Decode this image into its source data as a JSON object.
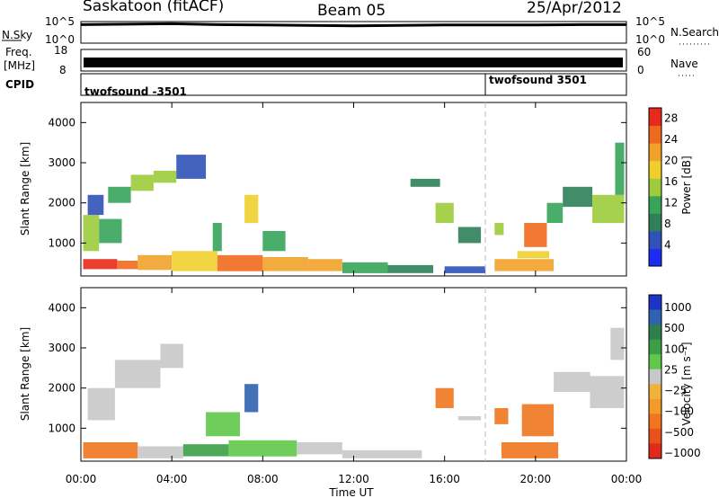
{
  "header": {
    "station": "Saskatoon (fitACF)",
    "beam": "Beam 05",
    "date": "25/Apr/2012"
  },
  "nsky": {
    "label": "N.Sky",
    "ticks": [
      "10^5",
      "10^0"
    ],
    "right_ticks": [
      "10^5",
      "10^0"
    ],
    "right_label": "N.Search"
  },
  "freq": {
    "label_line1": "Freq.",
    "label_line2": "[MHz]",
    "ticks": [
      "18",
      "8"
    ],
    "right_ticks": [
      "60",
      "0"
    ],
    "right_label": "Nave"
  },
  "cpid": {
    "label": "CPID",
    "segments": [
      "twofsound -3501",
      "twofsound 3501"
    ],
    "change_time_h": 18.0
  },
  "colors": {
    "power": [
      "#1c2cf0",
      "#2f52b8",
      "#2f7f5a",
      "#37a45a",
      "#9ccc3c",
      "#f0cf2c",
      "#f0a22a",
      "#ef6a1e",
      "#e82a1a"
    ],
    "velocity": [
      "#1e34c8",
      "#2f62b0",
      "#2e7f4c",
      "#3a9f45",
      "#60c84a",
      "#c8c8c8",
      "#f2b23a",
      "#f29a2a",
      "#f0751e",
      "#e8521a",
      "#e02a1a"
    ]
  },
  "chart_data": [
    {
      "type": "line",
      "title": "N.Sky / N.Search",
      "x": [
        0,
        2,
        4,
        6,
        8,
        10,
        12,
        14,
        16,
        18,
        20,
        22,
        24
      ],
      "y_log10": [
        4.3,
        4.4,
        4.5,
        4.3,
        4.2,
        4.1,
        4.0,
        4.1,
        4.2,
        4.2,
        4.2,
        4.3,
        4.3
      ],
      "ylim_log10": [
        0,
        5
      ]
    },
    {
      "type": "bar",
      "title": "Freq / Nave",
      "ylabel": "Freq. [MHz]",
      "ylim": [
        8,
        18
      ],
      "note": "dense alternating soundings filling the band"
    },
    {
      "type": "heatmap",
      "title": "Power",
      "xlabel": "Time UT",
      "ylabel": "Slant Range [km]",
      "x_ticks": [
        "00:00",
        "04:00",
        "08:00",
        "12:00",
        "16:00",
        "20:00",
        "00:00"
      ],
      "y_ticks": [
        "1000",
        "2000",
        "3000",
        "4000"
      ],
      "xlim_h": [
        0,
        24
      ],
      "ylim_km": [
        180,
        4500
      ],
      "colorbar": {
        "label": "Power [dB]",
        "ticks": [
          "4",
          "8",
          "12",
          "16",
          "20",
          "24",
          "28"
        ],
        "range": [
          0,
          30
        ]
      },
      "regions": [
        {
          "t0": 0.1,
          "t1": 1.6,
          "r0": 350,
          "r1": 600,
          "v": 28
        },
        {
          "t0": 1.6,
          "t1": 2.5,
          "r0": 350,
          "r1": 560,
          "v": 26
        },
        {
          "t0": 2.5,
          "t1": 4.0,
          "r0": 330,
          "r1": 700,
          "v": 22
        },
        {
          "t0": 4.0,
          "t1": 6.0,
          "r0": 300,
          "r1": 800,
          "v": 18
        },
        {
          "t0": 6.0,
          "t1": 8.0,
          "r0": 300,
          "r1": 700,
          "v": 24
        },
        {
          "t0": 8.0,
          "t1": 10.0,
          "r0": 300,
          "r1": 650,
          "v": 20
        },
        {
          "t0": 10.0,
          "t1": 11.5,
          "r0": 300,
          "r1": 600,
          "v": 22
        },
        {
          "t0": 11.5,
          "t1": 13.5,
          "r0": 250,
          "r1": 520,
          "v": 12
        },
        {
          "t0": 13.5,
          "t1": 15.5,
          "r0": 250,
          "r1": 450,
          "v": 8
        },
        {
          "t0": 16.0,
          "t1": 17.8,
          "r0": 250,
          "r1": 420,
          "v": 6
        },
        {
          "t0": 18.2,
          "t1": 20.8,
          "r0": 300,
          "r1": 600,
          "v": 22
        },
        {
          "t0": 19.2,
          "t1": 20.6,
          "r0": 620,
          "r1": 800,
          "v": 18
        },
        {
          "t0": 0.1,
          "t1": 0.8,
          "r0": 800,
          "r1": 1700,
          "v": 14
        },
        {
          "t0": 0.8,
          "t1": 1.8,
          "r0": 1000,
          "r1": 1600,
          "v": 10
        },
        {
          "t0": 0.3,
          "t1": 1.0,
          "r0": 1700,
          "r1": 2200,
          "v": 6
        },
        {
          "t0": 1.2,
          "t1": 2.2,
          "r0": 2000,
          "r1": 2400,
          "v": 12
        },
        {
          "t0": 2.2,
          "t1": 3.2,
          "r0": 2300,
          "r1": 2700,
          "v": 14
        },
        {
          "t0": 3.2,
          "t1": 4.2,
          "r0": 2500,
          "r1": 2800,
          "v": 16
        },
        {
          "t0": 4.2,
          "t1": 5.5,
          "r0": 2600,
          "r1": 3200,
          "v": 6
        },
        {
          "t0": 5.8,
          "t1": 6.2,
          "r0": 800,
          "r1": 1500,
          "v": 10
        },
        {
          "t0": 7.2,
          "t1": 7.8,
          "r0": 1500,
          "r1": 2200,
          "v": 18
        },
        {
          "t0": 8.0,
          "t1": 9.0,
          "r0": 800,
          "r1": 1300,
          "v": 10
        },
        {
          "t0": 15.6,
          "t1": 16.4,
          "r0": 1500,
          "r1": 2000,
          "v": 14
        },
        {
          "t0": 14.5,
          "t1": 15.8,
          "r0": 2400,
          "r1": 2600,
          "v": 8
        },
        {
          "t0": 16.6,
          "t1": 17.6,
          "r0": 1000,
          "r1": 1400,
          "v": 8
        },
        {
          "t0": 18.2,
          "t1": 18.6,
          "r0": 1200,
          "r1": 1500,
          "v": 16
        },
        {
          "t0": 19.5,
          "t1": 20.5,
          "r0": 900,
          "r1": 1500,
          "v": 24
        },
        {
          "t0": 20.5,
          "t1": 21.2,
          "r0": 1500,
          "r1": 2000,
          "v": 12
        },
        {
          "t0": 21.2,
          "t1": 22.5,
          "r0": 1900,
          "r1": 2400,
          "v": 8
        },
        {
          "t0": 22.5,
          "t1": 23.9,
          "r0": 1500,
          "r1": 2200,
          "v": 14
        },
        {
          "t0": 23.5,
          "t1": 23.9,
          "r0": 2200,
          "r1": 3500,
          "v": 12
        }
      ]
    },
    {
      "type": "heatmap",
      "title": "Velocity",
      "xlabel": "Time UT",
      "ylabel": "Slant Range [km]",
      "x_ticks": [
        "00:00",
        "04:00",
        "08:00",
        "12:00",
        "16:00",
        "20:00",
        "00:00"
      ],
      "y_ticks": [
        "1000",
        "2000",
        "3000",
        "4000"
      ],
      "xlim_h": [
        0,
        24
      ],
      "ylim_km": [
        180,
        4500
      ],
      "colorbar": {
        "label": "Velocity [m s⁻¹]",
        "ticks": [
          "1000",
          "500",
          "100",
          "25",
          "−25",
          "−100",
          "−500",
          "−1000"
        ]
      },
      "regions": [
        {
          "t0": 0.1,
          "t1": 2.5,
          "r0": 250,
          "r1": 650,
          "v": -150
        },
        {
          "t0": 2.5,
          "t1": 4.5,
          "r0": 250,
          "r1": 550,
          "v": 0
        },
        {
          "t0": 4.5,
          "t1": 6.5,
          "r0": 300,
          "r1": 600,
          "v": 120
        },
        {
          "t0": 6.5,
          "t1": 9.5,
          "r0": 300,
          "r1": 700,
          "v": 80
        },
        {
          "t0": 9.5,
          "t1": 11.5,
          "r0": 350,
          "r1": 650,
          "v": 0
        },
        {
          "t0": 11.5,
          "t1": 15.0,
          "r0": 250,
          "r1": 450,
          "v": 10
        },
        {
          "t0": 18.5,
          "t1": 21.0,
          "r0": 250,
          "r1": 650,
          "v": -200
        },
        {
          "t0": 0.3,
          "t1": 1.5,
          "r0": 1200,
          "r1": 2000,
          "v": 0
        },
        {
          "t0": 1.5,
          "t1": 3.5,
          "r0": 2000,
          "r1": 2700,
          "v": 0
        },
        {
          "t0": 3.5,
          "t1": 4.5,
          "r0": 2500,
          "r1": 3100,
          "v": 0
        },
        {
          "t0": 7.2,
          "t1": 7.8,
          "r0": 1400,
          "r1": 2100,
          "v": 700
        },
        {
          "t0": 5.5,
          "t1": 7.0,
          "r0": 800,
          "r1": 1400,
          "v": 60
        },
        {
          "t0": 15.6,
          "t1": 16.4,
          "r0": 1500,
          "r1": 2000,
          "v": -120
        },
        {
          "t0": 16.6,
          "t1": 17.6,
          "r0": 1200,
          "r1": 1300,
          "v": 0
        },
        {
          "t0": 18.2,
          "t1": 18.8,
          "r0": 1100,
          "r1": 1500,
          "v": -200
        },
        {
          "t0": 19.4,
          "t1": 20.8,
          "r0": 800,
          "r1": 1600,
          "v": -350
        },
        {
          "t0": 20.8,
          "t1": 22.4,
          "r0": 1900,
          "r1": 2400,
          "v": 0
        },
        {
          "t0": 22.4,
          "t1": 23.9,
          "r0": 1500,
          "r1": 2300,
          "v": 0
        },
        {
          "t0": 23.3,
          "t1": 23.9,
          "r0": 2700,
          "r1": 3500,
          "v": 0
        }
      ]
    }
  ],
  "axis": {
    "xlabel": "Time UT",
    "ylabel": "Slant Range [km]",
    "power_label": "Power [dB]",
    "velocity_label": "Velocity [m s⁻¹]"
  }
}
